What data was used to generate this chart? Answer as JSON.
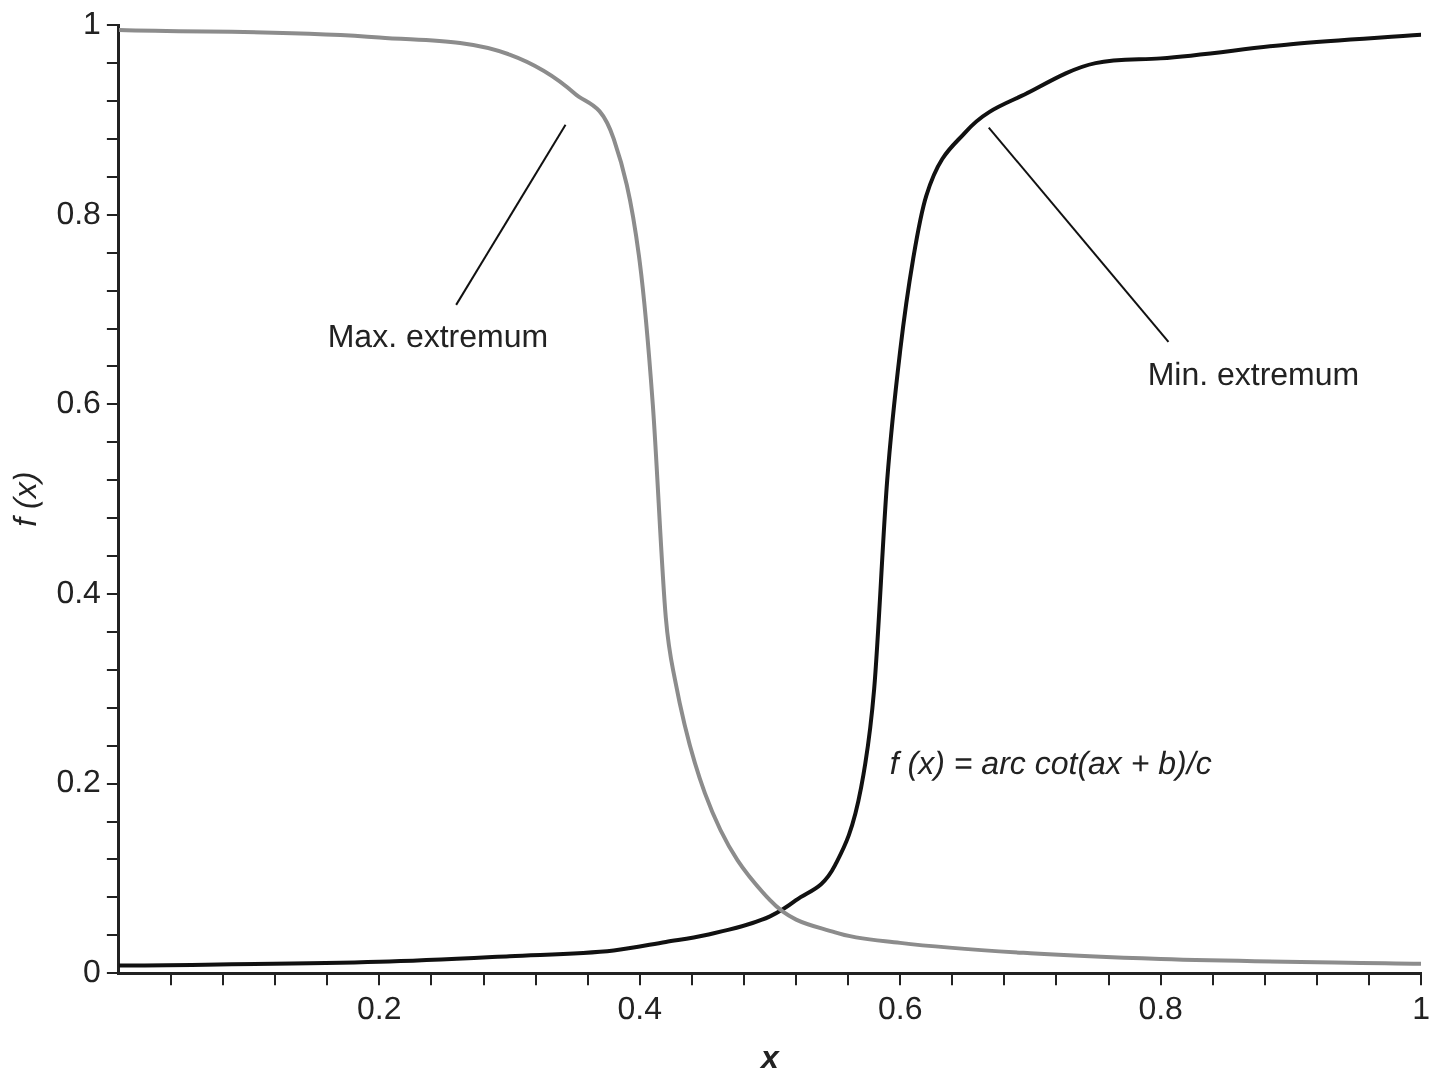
{
  "chart_data": {
    "type": "line",
    "xlabel": "x",
    "ylabel": "f (x)",
    "xlim": [
      0,
      1
    ],
    "ylim": [
      0,
      1
    ],
    "xticks": [
      {
        "value": 0.04,
        "label": null
      },
      {
        "value": 0.08,
        "label": null
      },
      {
        "value": 0.12,
        "label": null
      },
      {
        "value": 0.16,
        "label": null
      },
      0.2,
      {
        "value": 0.24,
        "label": null
      },
      {
        "value": 0.28,
        "label": null
      },
      {
        "value": 0.32,
        "label": null
      },
      {
        "value": 0.36,
        "label": null
      },
      0.4,
      {
        "value": 0.44,
        "label": null
      },
      {
        "value": 0.48,
        "label": null
      },
      {
        "value": 0.52,
        "label": null
      },
      {
        "value": 0.56,
        "label": null
      },
      0.6,
      {
        "value": 0.64,
        "label": null
      },
      {
        "value": 0.68,
        "label": null
      },
      {
        "value": 0.72,
        "label": null
      },
      {
        "value": 0.76,
        "label": null
      },
      0.8,
      {
        "value": 0.84,
        "label": null
      },
      {
        "value": 0.88,
        "label": null
      },
      {
        "value": 0.92,
        "label": null
      },
      {
        "value": 0.96,
        "label": null
      },
      1
    ],
    "yticks": [
      0,
      {
        "value": 0.04,
        "label": null
      },
      {
        "value": 0.08,
        "label": null
      },
      {
        "value": 0.12,
        "label": null
      },
      {
        "value": 0.16,
        "label": null
      },
      0.2,
      {
        "value": 0.24,
        "label": null
      },
      {
        "value": 0.28,
        "label": null
      },
      {
        "value": 0.32,
        "label": null
      },
      {
        "value": 0.36,
        "label": null
      },
      0.4,
      {
        "value": 0.44,
        "label": null
      },
      {
        "value": 0.48,
        "label": null
      },
      {
        "value": 0.52,
        "label": null
      },
      {
        "value": 0.56,
        "label": null
      },
      0.6,
      {
        "value": 0.64,
        "label": null
      },
      {
        "value": 0.68,
        "label": null
      },
      {
        "value": 0.72,
        "label": null
      },
      {
        "value": 0.76,
        "label": null
      },
      0.8,
      {
        "value": 0.84,
        "label": null
      },
      {
        "value": 0.88,
        "label": null
      },
      {
        "value": 0.92,
        "label": null
      },
      {
        "value": 0.96,
        "label": null
      },
      1
    ],
    "marker": "none",
    "line_style": "solid",
    "series": [
      {
        "color": "#8c8c8c",
        "x": [
          0,
          0.2,
          0.3,
          0.35,
          0.38,
          0.4,
          0.41,
          0.42,
          0.427,
          0.45,
          0.5,
          0.55,
          0.6,
          0.7,
          0.8,
          1
        ],
        "values": [
          0.995,
          0.987,
          0.969,
          0.928,
          0.88,
          0.75,
          0.6,
          0.375,
          0.31,
          0.19,
          0.077,
          0.043,
          0.032,
          0.021,
          0.015,
          0.01
        ]
      },
      {
        "color": "#111111",
        "x": [
          0,
          0.2,
          0.3,
          0.38,
          0.42,
          0.45,
          0.5,
          0.52,
          0.55,
          0.57,
          0.58,
          0.59,
          0.6,
          0.61,
          0.62,
          0.65,
          0.7,
          0.75,
          0.8,
          0.9,
          1
        ],
        "values": [
          0.008,
          0.012,
          0.018,
          0.024,
          0.033,
          0.04,
          0.06,
          0.077,
          0.114,
          0.196,
          0.3,
          0.52,
          0.657,
          0.754,
          0.82,
          0.887,
          0.93,
          0.96,
          0.965,
          0.98,
          0.99
        ]
      }
    ],
    "annotations": [
      "Max. extremum",
      "Min. extremum",
      "f (x) = arc cot(ax + b)/c"
    ]
  }
}
